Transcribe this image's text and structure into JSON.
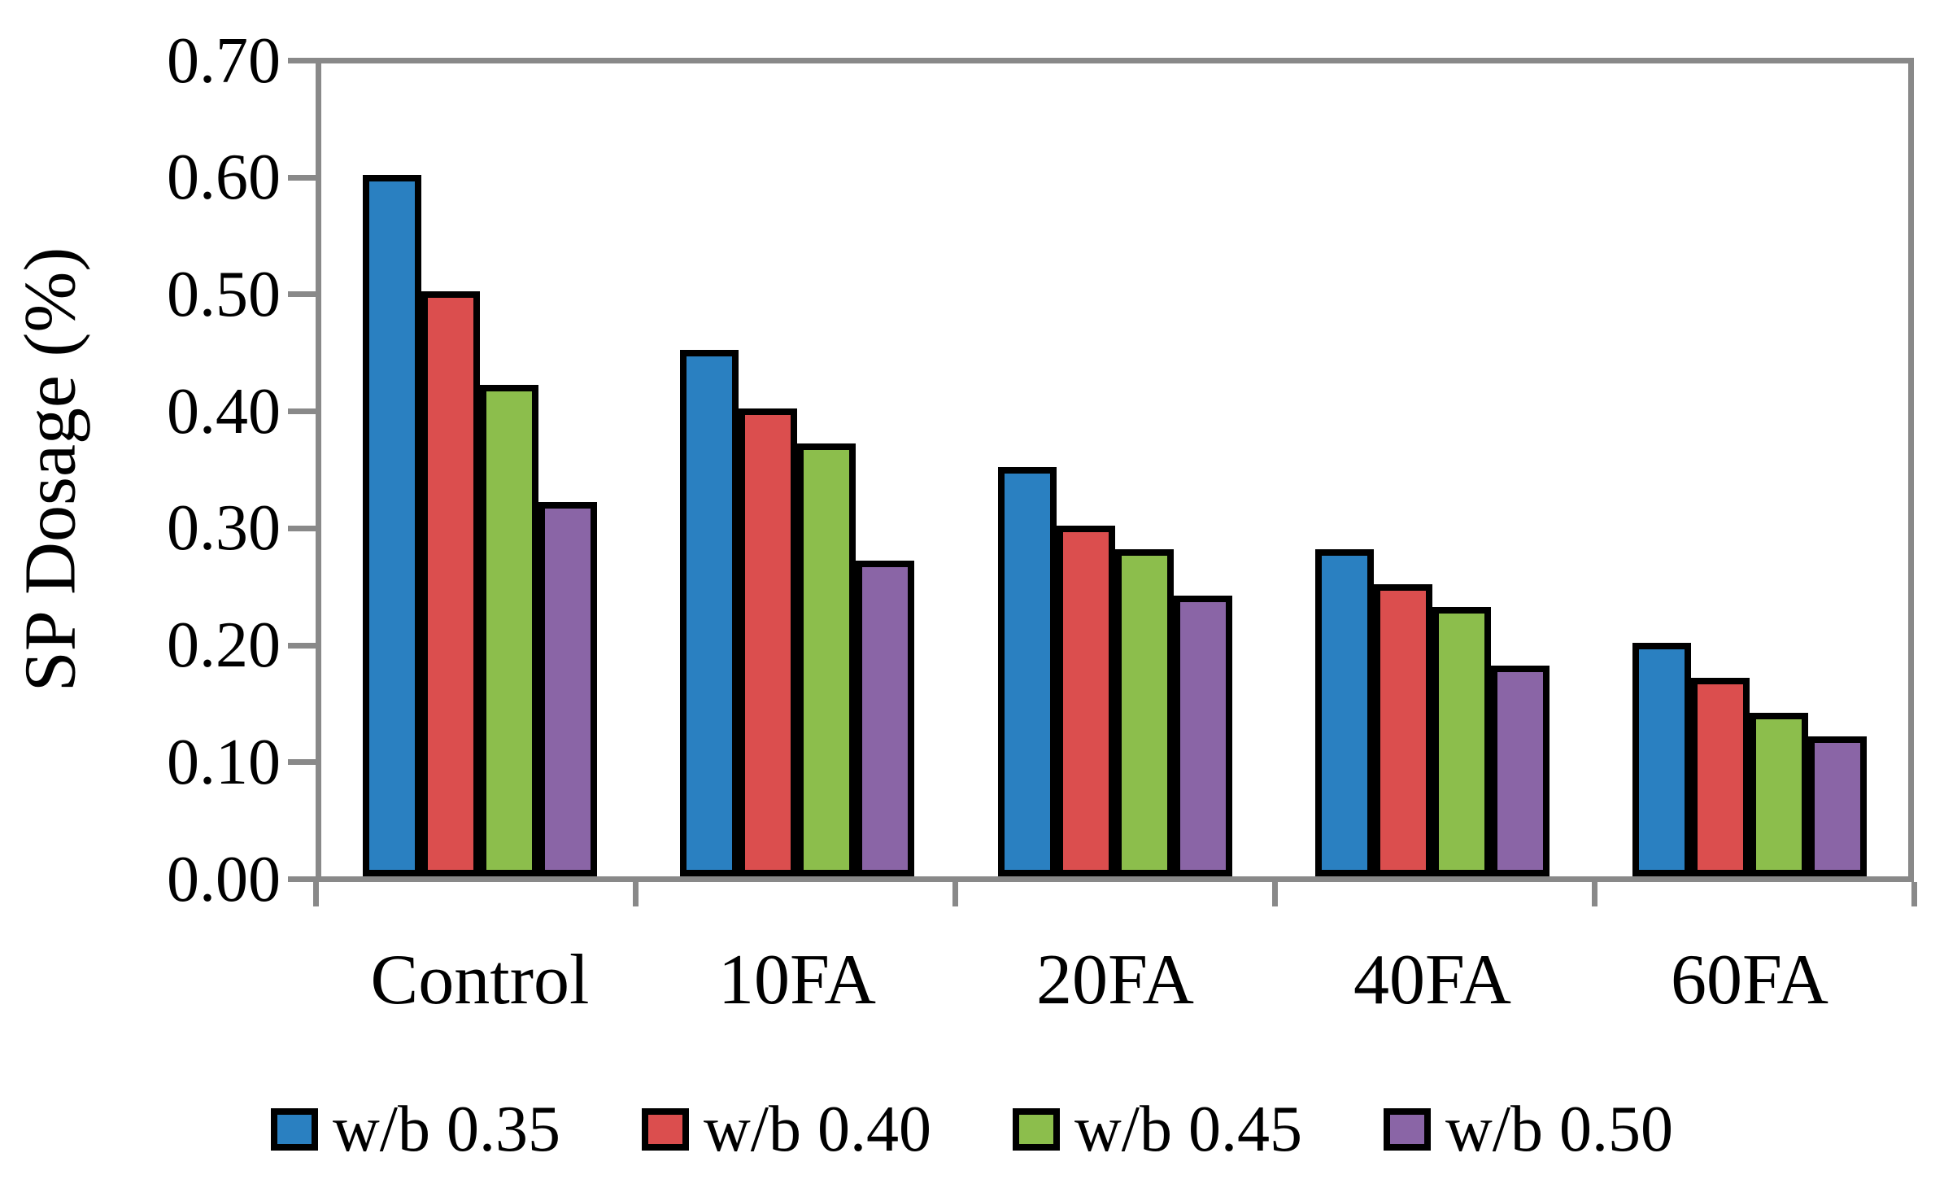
{
  "chart_data": {
    "type": "bar",
    "ylabel": "SP Dosage (%)",
    "ylim": [
      0.0,
      0.7
    ],
    "ytick_step": 0.1,
    "yticks": [
      "0.70",
      "0.60",
      "0.50",
      "0.40",
      "0.30",
      "0.20",
      "0.10",
      "0.00"
    ],
    "categories": [
      "Control",
      "10FA",
      "20FA",
      "40FA",
      "60FA"
    ],
    "series": [
      {
        "name": "w/b 0.35",
        "color": "#2A80C1",
        "values": [
          0.6,
          0.45,
          0.35,
          0.28,
          0.2
        ]
      },
      {
        "name": "w/b 0.40",
        "color": "#DB4E4E",
        "values": [
          0.5,
          0.4,
          0.3,
          0.25,
          0.17
        ]
      },
      {
        "name": "w/b 0.45",
        "color": "#8CBE4C",
        "values": [
          0.42,
          0.37,
          0.28,
          0.23,
          0.14
        ]
      },
      {
        "name": "w/b 0.50",
        "color": "#8A65A6",
        "values": [
          0.32,
          0.27,
          0.24,
          0.18,
          0.12
        ]
      }
    ],
    "legend_position": "bottom",
    "grid": false,
    "axis_color": "#898989",
    "bar_border_color": "#000000",
    "plot_background": "#ffffff"
  }
}
